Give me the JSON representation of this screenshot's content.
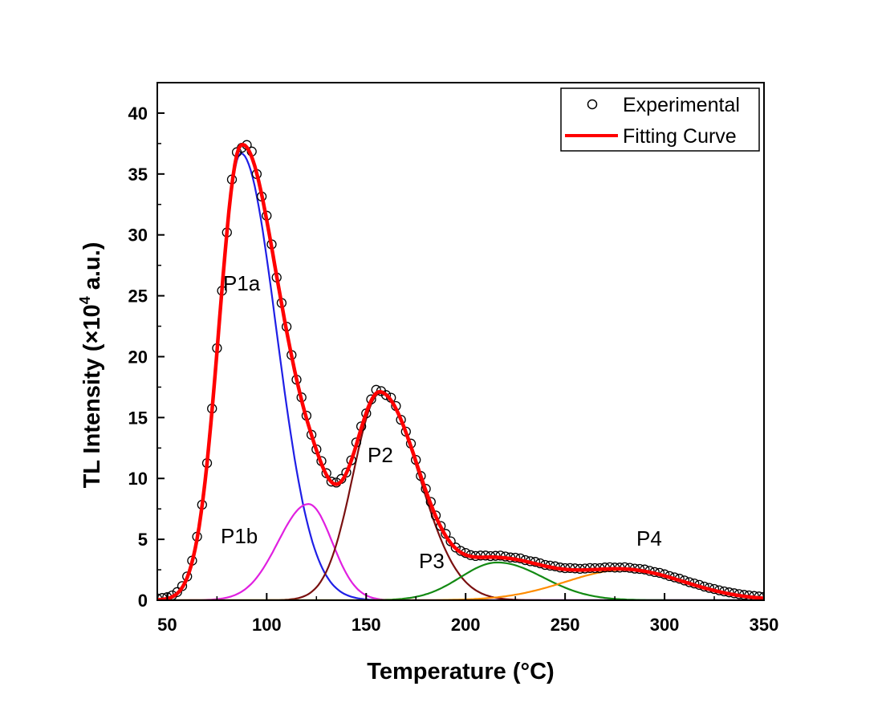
{
  "chart_data": {
    "type": "line",
    "xlabel": "Temperature (°C)",
    "ylabel_main": "TL Intensity (×10",
    "ylabel_sup": "4",
    "ylabel_tail": " a.u.)",
    "xlim": [
      45,
      350
    ],
    "ylim": [
      0,
      42.5
    ],
    "x_ticks": [
      50,
      100,
      150,
      200,
      250,
      300,
      350
    ],
    "y_ticks": [
      0,
      5,
      10,
      15,
      20,
      25,
      30,
      35,
      40
    ],
    "grid": false,
    "legend_position": "top-right",
    "legend": [
      {
        "label": "Experimental",
        "marker": "open-circle"
      },
      {
        "label": "Fitting Curve",
        "color": "#ff0000"
      }
    ],
    "components": [
      {
        "name": "P1a",
        "color": "#1f1fe6",
        "peak_x": 87,
        "peak_y": 36.7,
        "fwhm_left": 26,
        "fwhm_right": 42
      },
      {
        "name": "P1b",
        "color": "#e020e0",
        "peak_x": 121,
        "peak_y": 7.9,
        "fwhm_left": 36,
        "fwhm_right": 28
      },
      {
        "name": "P2",
        "color": "#7a1010",
        "peak_x": 157,
        "peak_y": 17.0,
        "fwhm_left": 32,
        "fwhm_right": 46
      },
      {
        "name": "P3",
        "color": "#138a13",
        "peak_x": 216,
        "peak_y": 3.1,
        "fwhm_left": 44,
        "fwhm_right": 54
      },
      {
        "name": "P4",
        "color": "#ff8c00",
        "peak_x": 280,
        "peak_y": 2.5,
        "fwhm_left": 70,
        "fwhm_right": 70
      }
    ],
    "fit_color": "#ff0000",
    "experimental_x_range": [
      45,
      350
    ],
    "experimental_step": 2.5,
    "peak_labels": [
      {
        "text": "P1a"
      },
      {
        "text": "P1b"
      },
      {
        "text": "P2"
      },
      {
        "text": "P3"
      },
      {
        "text": "P4"
      }
    ]
  }
}
